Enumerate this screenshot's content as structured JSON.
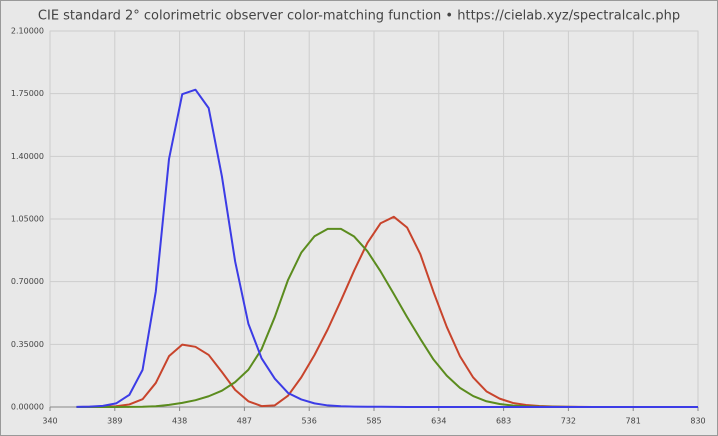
{
  "chart_data": {
    "type": "line",
    "title": "CIE standard 2° colorimetric observer color-matching function  •  https://cielab.xyz/spectralcalc.php",
    "x": [
      360,
      370,
      380,
      390,
      400,
      410,
      420,
      430,
      440,
      450,
      460,
      470,
      480,
      490,
      500,
      510,
      520,
      530,
      540,
      550,
      560,
      570,
      580,
      590,
      600,
      610,
      620,
      630,
      640,
      650,
      660,
      670,
      680,
      690,
      700,
      710,
      720,
      730,
      740,
      750,
      760,
      770,
      780,
      790,
      800,
      810,
      820,
      830
    ],
    "series": [
      {
        "color": "#c8442c",
        "values": [
          0.00013,
          0.00041,
          0.00137,
          0.00424,
          0.01431,
          0.04351,
          0.13438,
          0.2839,
          0.34828,
          0.3362,
          0.2908,
          0.19536,
          0.09564,
          0.03201,
          0.0049,
          0.0093,
          0.06327,
          0.1655,
          0.2904,
          0.43345,
          0.5945,
          0.7621,
          0.9163,
          1.0263,
          1.0622,
          1.0026,
          0.85445,
          0.6424,
          0.4479,
          0.2835,
          0.1649,
          0.0874,
          0.04677,
          0.0227,
          0.01136,
          0.00579,
          0.0029,
          0.00144,
          0.00069,
          0.00033,
          0.00017,
          8e-05,
          4e-05,
          2e-05,
          1e-05,
          0,
          0,
          0
        ]
      },
      {
        "color": "#5b8c1e",
        "values": [
          0,
          1e-05,
          4e-05,
          0.00012,
          0.0004,
          0.00121,
          0.004,
          0.0116,
          0.023,
          0.038,
          0.06,
          0.09098,
          0.13902,
          0.20802,
          0.323,
          0.503,
          0.71,
          0.862,
          0.954,
          0.99495,
          0.995,
          0.952,
          0.87,
          0.757,
          0.631,
          0.503,
          0.381,
          0.265,
          0.175,
          0.107,
          0.061,
          0.032,
          0.017,
          0.00821,
          0.0041,
          0.00209,
          0.00105,
          0.00052,
          0.00025,
          0.00012,
          6e-05,
          3e-05,
          2e-05,
          1e-05,
          0,
          0,
          0,
          0
        ]
      },
      {
        "color": "#3c3ce6",
        "values": [
          0.0006,
          0.00194,
          0.00645,
          0.02005,
          0.06785,
          0.2074,
          0.6456,
          1.3856,
          1.74706,
          1.77211,
          1.6692,
          1.28764,
          0.81295,
          0.46518,
          0.272,
          0.1582,
          0.07825,
          0.04216,
          0.0203,
          0.00875,
          0.0039,
          0.0021,
          0.00165,
          0.0011,
          0.0008,
          0.00034,
          0.00019,
          5e-05,
          2e-05,
          0,
          0,
          0,
          0,
          0,
          0,
          0,
          0,
          0,
          0,
          0,
          0,
          0,
          0,
          0,
          0,
          0,
          0,
          0
        ]
      }
    ],
    "xlim": [
      340,
      830
    ],
    "xticks": [
      340,
      389,
      438,
      487,
      536,
      585,
      634,
      683,
      732,
      781,
      830
    ],
    "ylim": [
      0,
      2.1
    ],
    "yticks": [
      {
        "value": 0,
        "label": "0.00000"
      },
      {
        "value": 0.35,
        "label": "0.35000"
      },
      {
        "value": 0.7,
        "label": "0.70000"
      },
      {
        "value": 1.05,
        "label": "1.05000"
      },
      {
        "value": 1.4,
        "label": "1.40000"
      },
      {
        "value": 1.75,
        "label": "1.75000"
      },
      {
        "value": 2.1,
        "label": "2.10000"
      }
    ],
    "grid": true
  }
}
